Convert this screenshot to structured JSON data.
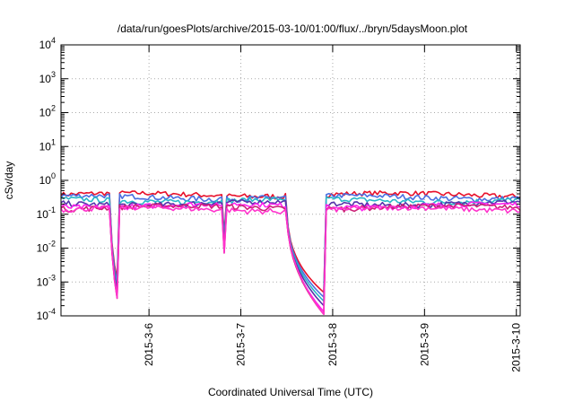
{
  "chart_data": {
    "type": "line",
    "title": "/data/run/goesPlots/archive/2015-03-10/01:00/flux/../bryn/5daysMoon.plot",
    "xlabel": "Coordinated Universal Time (UTC)",
    "ylabel": "cSv/day",
    "yscale": "log",
    "ylim": [
      0.0001,
      10000
    ],
    "xlim": [
      "2015-03-05 01:00",
      "2015-03-10 01:00"
    ],
    "grid": true,
    "x_ticks": [
      "2015-3-6",
      "2015-3-7",
      "2015-3-8",
      "2015-3-9",
      "2015-3-10"
    ],
    "y_ticks": [
      {
        "base": "10",
        "exp": "-4"
      },
      {
        "base": "10",
        "exp": "-3"
      },
      {
        "base": "10",
        "exp": "-2"
      },
      {
        "base": "10",
        "exp": "-1"
      },
      {
        "base": "10",
        "exp": "0"
      },
      {
        "base": "10",
        "exp": "1"
      },
      {
        "base": "10",
        "exp": "2"
      },
      {
        "base": "10",
        "exp": "3"
      },
      {
        "base": "10",
        "exp": "4"
      }
    ],
    "baseline_levels": [
      0.38,
      0.32,
      0.26,
      0.21,
      0.18,
      0.16,
      0.14
    ],
    "series_colors": [
      "#e8102a",
      "#4b6fe0",
      "#2ab7c8",
      "#5533aa",
      "#ff22ee",
      "#cc2277",
      "#ff33cc"
    ],
    "events": [
      {
        "start": "2015-03-05 14:00",
        "end": "2015-03-05 16:00",
        "min": 0.0002
      },
      {
        "start": "2015-03-06 19:00",
        "end": "2015-03-06 20:00",
        "min": 0.004
      },
      {
        "start": "2015-03-07 12:00",
        "end": "2015-03-07 22:00",
        "min": 0.0001
      }
    ]
  }
}
